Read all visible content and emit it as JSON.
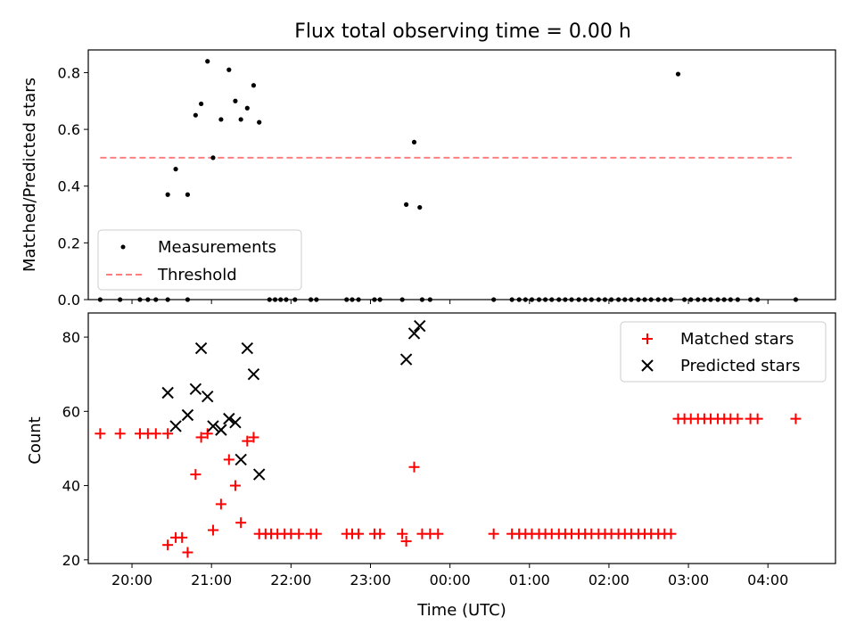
{
  "chart_data": [
    {
      "type": "scatter",
      "title": "Flux total observing time = 0.00 h",
      "ylabel": "Matched/Predicted stars",
      "xlabel": "",
      "xlim": [
        19.45,
        28.85
      ],
      "ylim": [
        0.0,
        0.88
      ],
      "yticks": [
        0.0,
        0.2,
        0.4,
        0.6,
        0.8
      ],
      "ytick_labels": [
        "0.0",
        "0.2",
        "0.4",
        "0.6",
        "0.8"
      ],
      "xticks": [
        20,
        21,
        22,
        23,
        24,
        25,
        26,
        27,
        28
      ],
      "legend_position": "lower-left",
      "legend": [
        "Measurements",
        "Threshold"
      ],
      "threshold": {
        "name": "Threshold",
        "value": 0.5,
        "x_range": [
          19.6,
          28.3
        ],
        "color": "#ff7f7f"
      },
      "series": [
        {
          "name": "Measurements",
          "color": "#000000",
          "points": [
            [
              19.6,
              0
            ],
            [
              19.85,
              0
            ],
            [
              20.1,
              0
            ],
            [
              20.2,
              0
            ],
            [
              20.3,
              0
            ],
            [
              20.45,
              0
            ],
            [
              20.7,
              0
            ],
            [
              20.45,
              0.37
            ],
            [
              20.55,
              0.46
            ],
            [
              20.7,
              0.37
            ],
            [
              20.8,
              0.65
            ],
            [
              20.87,
              0.69
            ],
            [
              20.95,
              0.84
            ],
            [
              21.02,
              0.5
            ],
            [
              21.12,
              0.635
            ],
            [
              21.22,
              0.81
            ],
            [
              21.3,
              0.7
            ],
            [
              21.37,
              0.635
            ],
            [
              21.45,
              0.675
            ],
            [
              21.53,
              0.755
            ],
            [
              21.6,
              0.625
            ],
            [
              21.73,
              0
            ],
            [
              21.8,
              0
            ],
            [
              21.87,
              0
            ],
            [
              21.94,
              0
            ],
            [
              22.05,
              0
            ],
            [
              22.25,
              0
            ],
            [
              22.32,
              0
            ],
            [
              22.7,
              0
            ],
            [
              22.77,
              0
            ],
            [
              22.85,
              0
            ],
            [
              23.05,
              0
            ],
            [
              23.12,
              0
            ],
            [
              23.4,
              0
            ],
            [
              23.65,
              0
            ],
            [
              23.75,
              0
            ],
            [
              23.45,
              0.335
            ],
            [
              23.55,
              0.555
            ],
            [
              23.62,
              0.325
            ],
            [
              24.55,
              0
            ],
            [
              24.78,
              0
            ],
            [
              24.87,
              0
            ],
            [
              24.95,
              0
            ],
            [
              25.03,
              0
            ],
            [
              25.12,
              0
            ],
            [
              25.2,
              0
            ],
            [
              25.28,
              0
            ],
            [
              25.37,
              0
            ],
            [
              25.45,
              0
            ],
            [
              25.53,
              0
            ],
            [
              25.62,
              0
            ],
            [
              25.7,
              0
            ],
            [
              25.78,
              0
            ],
            [
              25.87,
              0
            ],
            [
              25.95,
              0
            ],
            [
              26.03,
              0
            ],
            [
              26.12,
              0
            ],
            [
              26.2,
              0
            ],
            [
              26.28,
              0
            ],
            [
              26.37,
              0
            ],
            [
              26.45,
              0
            ],
            [
              26.53,
              0
            ],
            [
              26.62,
              0
            ],
            [
              26.7,
              0
            ],
            [
              26.78,
              0
            ],
            [
              26.87,
              0.795
            ],
            [
              26.95,
              0
            ],
            [
              27.03,
              0
            ],
            [
              27.12,
              0
            ],
            [
              27.2,
              0
            ],
            [
              27.28,
              0
            ],
            [
              27.37,
              0
            ],
            [
              27.45,
              0
            ],
            [
              27.53,
              0
            ],
            [
              27.62,
              0
            ],
            [
              27.78,
              0
            ],
            [
              27.87,
              0
            ],
            [
              28.35,
              0
            ]
          ]
        }
      ]
    },
    {
      "type": "scatter",
      "title": "",
      "ylabel": "Count",
      "xlabel": "Time (UTC)",
      "xlim": [
        19.45,
        28.85
      ],
      "ylim": [
        19,
        86.5
      ],
      "yticks": [
        20,
        40,
        60,
        80
      ],
      "ytick_labels": [
        "20",
        "40",
        "60",
        "80"
      ],
      "xticks": [
        20,
        21,
        22,
        23,
        24,
        25,
        26,
        27,
        28
      ],
      "xtick_labels": [
        "20:00",
        "21:00",
        "22:00",
        "23:00",
        "00:00",
        "01:00",
        "02:00",
        "03:00",
        "04:00"
      ],
      "legend_position": "upper-right",
      "legend": [
        "Matched stars",
        "Predicted stars"
      ],
      "series": [
        {
          "name": "Matched stars",
          "marker": "plus",
          "color": "#ff0000",
          "points": [
            [
              19.6,
              54
            ],
            [
              19.85,
              54
            ],
            [
              20.1,
              54
            ],
            [
              20.2,
              54
            ],
            [
              20.3,
              54
            ],
            [
              20.45,
              54
            ],
            [
              20.45,
              24
            ],
            [
              20.55,
              26
            ],
            [
              20.63,
              26
            ],
            [
              20.7,
              22
            ],
            [
              20.8,
              43
            ],
            [
              20.87,
              53
            ],
            [
              20.95,
              54
            ],
            [
              21.02,
              28
            ],
            [
              21.12,
              35
            ],
            [
              21.22,
              47
            ],
            [
              21.3,
              40
            ],
            [
              21.37,
              30
            ],
            [
              21.45,
              52
            ],
            [
              21.53,
              53
            ],
            [
              21.6,
              27
            ],
            [
              21.68,
              27
            ],
            [
              21.75,
              27
            ],
            [
              21.83,
              27
            ],
            [
              21.92,
              27
            ],
            [
              22.0,
              27
            ],
            [
              22.1,
              27
            ],
            [
              22.25,
              27
            ],
            [
              22.32,
              27
            ],
            [
              22.7,
              27
            ],
            [
              22.77,
              27
            ],
            [
              22.85,
              27
            ],
            [
              23.05,
              27
            ],
            [
              23.12,
              27
            ],
            [
              23.4,
              27
            ],
            [
              23.45,
              25
            ],
            [
              23.55,
              45
            ],
            [
              23.65,
              27
            ],
            [
              23.75,
              27
            ],
            [
              23.85,
              27
            ],
            [
              24.55,
              27
            ],
            [
              24.78,
              27
            ],
            [
              24.87,
              27
            ],
            [
              24.95,
              27
            ],
            [
              25.03,
              27
            ],
            [
              25.12,
              27
            ],
            [
              25.2,
              27
            ],
            [
              25.28,
              27
            ],
            [
              25.37,
              27
            ],
            [
              25.45,
              27
            ],
            [
              25.53,
              27
            ],
            [
              25.62,
              27
            ],
            [
              25.7,
              27
            ],
            [
              25.78,
              27
            ],
            [
              25.87,
              27
            ],
            [
              25.95,
              27
            ],
            [
              26.03,
              27
            ],
            [
              26.12,
              27
            ],
            [
              26.2,
              27
            ],
            [
              26.28,
              27
            ],
            [
              26.37,
              27
            ],
            [
              26.45,
              27
            ],
            [
              26.53,
              27
            ],
            [
              26.62,
              27
            ],
            [
              26.7,
              27
            ],
            [
              26.78,
              27
            ],
            [
              26.87,
              58
            ],
            [
              26.95,
              58
            ],
            [
              27.03,
              58
            ],
            [
              27.12,
              58
            ],
            [
              27.2,
              58
            ],
            [
              27.28,
              58
            ],
            [
              27.37,
              58
            ],
            [
              27.45,
              58
            ],
            [
              27.53,
              58
            ],
            [
              27.62,
              58
            ],
            [
              27.78,
              58
            ],
            [
              27.87,
              58
            ],
            [
              28.35,
              58
            ]
          ]
        },
        {
          "name": "Predicted stars",
          "marker": "x",
          "color": "#000000",
          "points": [
            [
              20.45,
              65
            ],
            [
              20.55,
              56
            ],
            [
              20.7,
              59
            ],
            [
              20.8,
              66
            ],
            [
              20.87,
              77
            ],
            [
              20.95,
              64
            ],
            [
              21.02,
              56
            ],
            [
              21.12,
              55
            ],
            [
              21.22,
              58
            ],
            [
              21.3,
              57
            ],
            [
              21.37,
              47
            ],
            [
              21.45,
              77
            ],
            [
              21.53,
              70
            ],
            [
              21.6,
              43
            ],
            [
              23.45,
              74
            ],
            [
              23.55,
              81
            ],
            [
              23.62,
              83
            ]
          ]
        }
      ]
    }
  ]
}
